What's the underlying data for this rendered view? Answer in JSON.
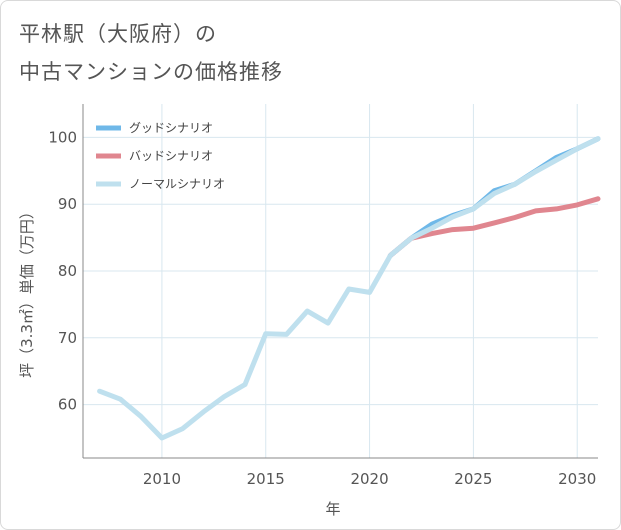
{
  "page": {
    "title_line1": "平林駅（大阪府）の",
    "title_line2": "中古マンションの価格推移"
  },
  "chart_data": {
    "type": "line",
    "title": "平林駅（大阪府）の中古マンションの価格推移",
    "xlabel": "年",
    "ylabel": "坪（3.3㎡）単価（万円）",
    "xlim": [
      2006.2,
      2031
    ],
    "ylim": [
      52,
      105
    ],
    "xticks": [
      2010,
      2015,
      2020,
      2025,
      2030
    ],
    "yticks": [
      60,
      70,
      80,
      90,
      100
    ],
    "legend_position": "top-left",
    "series": [
      {
        "name": "グッドシナリオ",
        "color": "#6fb8e8",
        "x": [
          2021,
          2022,
          2023,
          2024,
          2025,
          2026,
          2027,
          2028,
          2029,
          2030,
          2031
        ],
        "values": [
          82.3,
          84.9,
          87.0,
          88.3,
          89.3,
          92.0,
          93.0,
          95.0,
          97.0,
          98.3,
          99.8
        ]
      },
      {
        "name": "バッドシナリオ",
        "color": "#e0868f",
        "x": [
          2021,
          2022,
          2023,
          2024,
          2025,
          2026,
          2027,
          2028,
          2029,
          2030,
          2031
        ],
        "values": [
          82.3,
          84.9,
          85.6,
          86.2,
          86.4,
          87.2,
          88.0,
          89.0,
          89.3,
          89.9,
          90.8
        ]
      },
      {
        "name": "ノーマルシナリオ",
        "color": "#bfe0ee",
        "x": [
          2007,
          2008,
          2009,
          2010,
          2011,
          2012,
          2013,
          2014,
          2015,
          2016,
          2017,
          2018,
          2019,
          2020,
          2021,
          2022,
          2023,
          2024,
          2025,
          2026,
          2027,
          2028,
          2029,
          2030,
          2031
        ],
        "values": [
          62.0,
          60.8,
          58.2,
          55.0,
          56.4,
          58.9,
          61.2,
          63.0,
          70.6,
          70.5,
          74.0,
          72.2,
          77.3,
          76.8,
          82.3,
          84.9,
          86.4,
          88.1,
          89.3,
          91.6,
          93.0,
          94.9,
          96.6,
          98.3,
          99.8
        ]
      }
    ]
  }
}
